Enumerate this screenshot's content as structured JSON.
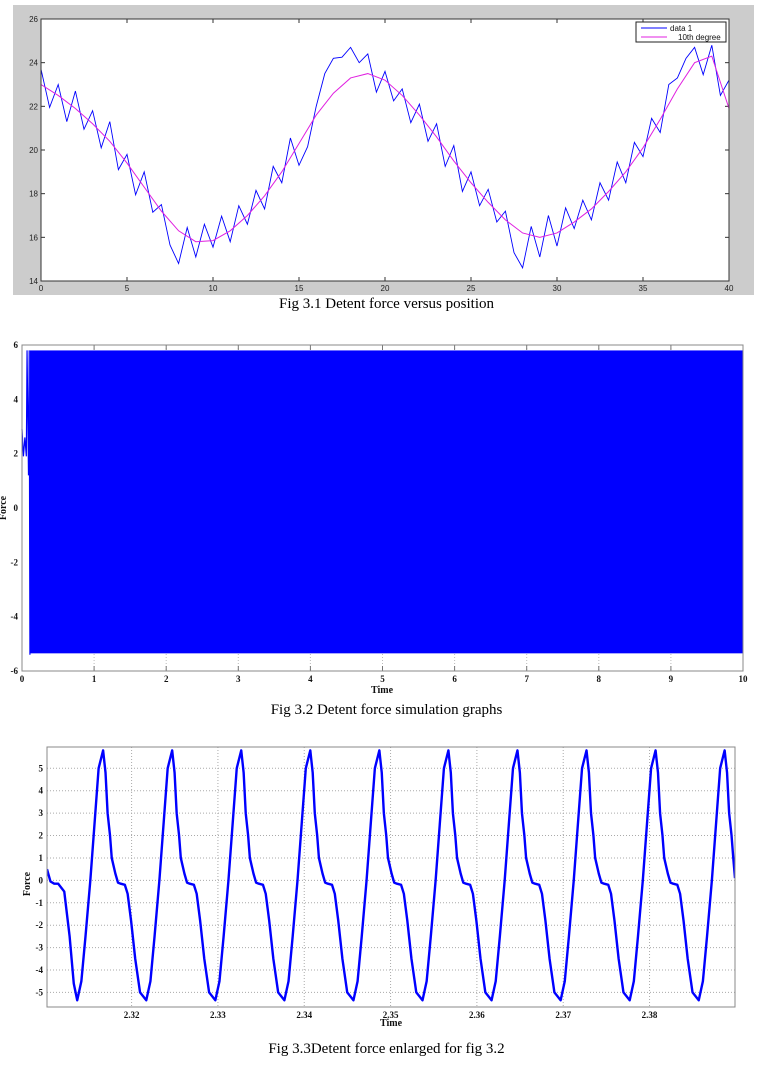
{
  "chart_data": [
    {
      "type": "line",
      "caption": "Fig 3.1 Detent force versus position",
      "xlim": [
        0,
        40
      ],
      "ylim": [
        14,
        26
      ],
      "xticks": [
        0,
        5,
        10,
        15,
        20,
        25,
        30,
        35,
        40
      ],
      "yticks": [
        14,
        16,
        18,
        20,
        22,
        24,
        26
      ],
      "grid": false,
      "background": "#cccccc",
      "legend": {
        "placement": "top-right",
        "entries": [
          "data 1",
          "10th degree"
        ]
      },
      "series": [
        {
          "name": "data 1",
          "color": "#0000ff",
          "x": [
            0,
            0.5,
            1,
            1.5,
            2,
            2.5,
            3,
            3.5,
            4,
            4.5,
            5,
            5.5,
            6,
            6.5,
            7,
            7.5,
            8,
            8.5,
            9,
            9.5,
            10,
            10.5,
            11,
            11.5,
            12,
            12.5,
            13,
            13.5,
            14,
            14.5,
            15,
            15.5,
            16,
            16.5,
            17,
            17.5,
            18,
            18.5,
            19,
            19.5,
            20,
            20.5,
            21,
            21.5,
            22,
            22.5,
            23,
            23.5,
            24,
            24.5,
            25,
            25.5,
            26,
            26.5,
            27,
            27.5,
            28,
            28.5,
            29,
            29.5,
            30,
            30.5,
            31,
            31.5,
            32,
            32.5,
            33,
            33.5,
            34,
            34.5,
            35,
            35.5,
            36,
            36.5,
            37,
            37.5,
            38,
            38.5,
            39,
            39.5,
            40
          ],
          "y": [
            23.7,
            21.95,
            23.0,
            21.3,
            22.7,
            20.95,
            21.8,
            20.1,
            21.3,
            19.1,
            19.8,
            17.95,
            19.0,
            17.15,
            17.5,
            15.65,
            14.8,
            16.45,
            15.1,
            16.6,
            15.55,
            16.97,
            15.8,
            17.45,
            16.6,
            18.15,
            17.3,
            19.25,
            18.5,
            20.55,
            19.3,
            20.15,
            22.0,
            23.5,
            24.2,
            24.25,
            24.7,
            24.0,
            24.4,
            22.65,
            23.6,
            22.25,
            22.8,
            21.25,
            22.1,
            20.4,
            21.2,
            19.25,
            20.2,
            18.1,
            19.0,
            17.45,
            18.2,
            16.7,
            17.2,
            15.3,
            14.6,
            16.5,
            15.1,
            17.0,
            15.6,
            17.35,
            16.4,
            17.7,
            16.8,
            18.5,
            17.7,
            19.45,
            18.5,
            20.35,
            19.7,
            21.45,
            20.8,
            23.0,
            23.3,
            24.2,
            24.7,
            23.45,
            24.8,
            22.5,
            23.2
          ]
        },
        {
          "name": "10th degree",
          "color": "#e020e0",
          "x": [
            0,
            1,
            2,
            3,
            4,
            5,
            6,
            7,
            8,
            9,
            10,
            11,
            12,
            13,
            14,
            15,
            16,
            17,
            18,
            19,
            20,
            21,
            22,
            23,
            24,
            25,
            26,
            27,
            28,
            29,
            30,
            31,
            32,
            33,
            34,
            35,
            36,
            37,
            38,
            39,
            40
          ],
          "y": [
            23.0,
            22.5,
            21.9,
            21.2,
            20.4,
            19.4,
            18.3,
            17.2,
            16.3,
            15.8,
            15.85,
            16.3,
            17.0,
            17.9,
            19.0,
            20.3,
            21.6,
            22.6,
            23.3,
            23.5,
            23.2,
            22.5,
            21.6,
            20.6,
            19.5,
            18.5,
            17.6,
            16.8,
            16.2,
            16.0,
            16.2,
            16.7,
            17.3,
            18.1,
            19.0,
            20.1,
            21.4,
            22.8,
            24.0,
            24.3,
            21.9
          ]
        }
      ]
    },
    {
      "type": "line",
      "caption": "Fig 3.2 Detent force simulation graphs",
      "xlabel": "Time",
      "ylabel": "Force",
      "xlim": [
        0,
        10
      ],
      "ylim": [
        -6,
        6
      ],
      "xticks": [
        0,
        1,
        2,
        3,
        4,
        5,
        6,
        7,
        8,
        9,
        10
      ],
      "yticks": [
        -6,
        -4,
        -2,
        0,
        2,
        4,
        6
      ],
      "grid": true,
      "series": [
        {
          "color": "#0000ff",
          "transient_x": [
            0,
            0.02,
            0.04,
            0.06,
            0.07,
            0.09,
            0.1,
            0.11
          ],
          "transient_y": [
            2.9,
            1.9,
            2.6,
            1.9,
            5.8,
            1.2,
            5.8,
            -5.4
          ],
          "steady_max": 5.8,
          "steady_min": -5.35,
          "steady_from": 0.11
        }
      ]
    },
    {
      "type": "line",
      "caption": "Fig 3.3Detent force enlarged for fig 3.2",
      "xlabel": "Time",
      "ylabel": "Force",
      "xlim": [
        2.3102,
        2.3899
      ],
      "ylim": [
        -5.65,
        5.95
      ],
      "xticks": [
        "2.32",
        "2.33",
        "2.34",
        "2.35",
        "2.36",
        "2.37",
        "2.38"
      ],
      "yticks": [
        -5,
        -4,
        -3,
        -2,
        -1,
        0,
        1,
        2,
        3,
        4,
        5
      ],
      "grid": true,
      "series": [
        {
          "color": "#0000ff",
          "period": 0.008,
          "cycle_x": [
            2.3137,
            2.31418,
            2.31466,
            2.31522,
            2.3157,
            2.31618,
            2.3167,
            2.31698,
            2.31722,
            2.3175,
            2.3177,
            2.31812,
            2.31842,
            2.31874,
            2.31922,
            2.31954,
            2.31994,
            2.32042,
            2.32098,
            2.3217
          ],
          "cycle_y": [
            -5.35,
            -4.5,
            -2.5,
            0,
            2.5,
            5.0,
            5.8,
            4.8,
            3.0,
            2.0,
            1.0,
            0.3,
            -0.1,
            -0.15,
            -0.2,
            -0.6,
            -1.8,
            -3.5,
            -5.0,
            -5.35
          ]
        }
      ]
    }
  ]
}
